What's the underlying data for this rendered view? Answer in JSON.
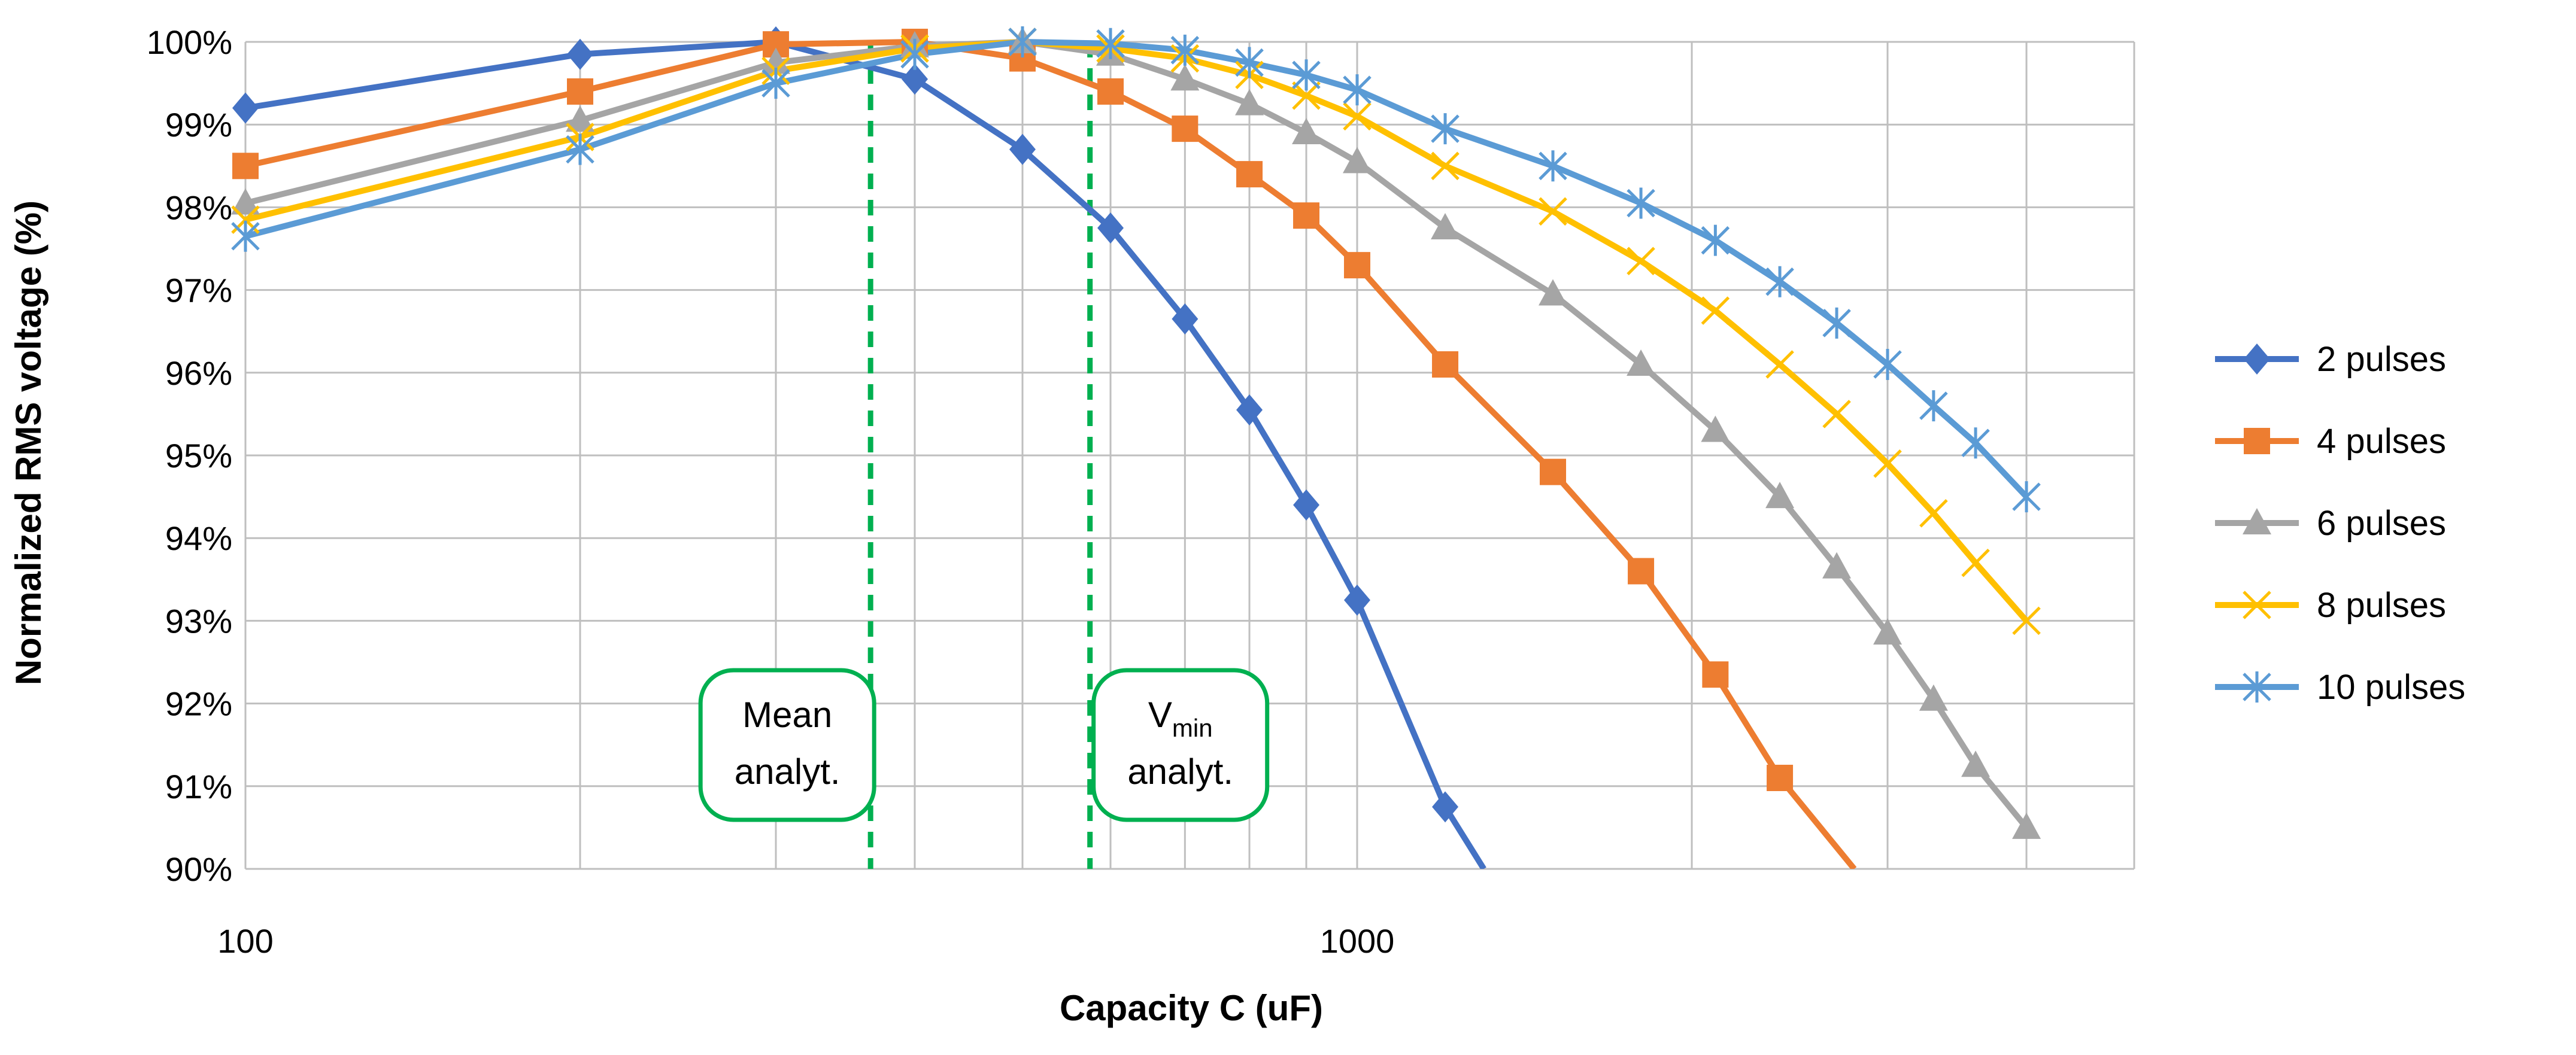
{
  "chart_data": {
    "type": "line",
    "title": "",
    "xlabel": "Capacity C (uF)",
    "ylabel": "Normalized RMS voltage (%)",
    "x_scale": "log",
    "xlim": [
      100,
      5000
    ],
    "ylim": [
      90,
      100
    ],
    "x_tick_labels": [
      "100",
      "1000"
    ],
    "y_tick_labels": [
      "90%",
      "91%",
      "92%",
      "93%",
      "94%",
      "95%",
      "96%",
      "97%",
      "98%",
      "99%",
      "100%"
    ],
    "grid": true,
    "legend_position": "right",
    "colors": {
      "2 pulses": "#4472C4",
      "4 pulses": "#ED7D31",
      "6 pulses": "#A5A5A5",
      "8 pulses": "#FFC000",
      "10 pulses": "#5B9BD5",
      "annotation": "#00B050"
    },
    "series": [
      {
        "name": "2 pulses",
        "marker": "diamond",
        "x": [
          100,
          200,
          300,
          400,
          500,
          600,
          700,
          800,
          900,
          1000,
          1200
        ],
        "values": [
          99.2,
          99.85,
          100.0,
          99.55,
          98.7,
          97.75,
          96.65,
          95.55,
          94.4,
          93.25,
          90.75
        ],
        "extend_to": [
          1300,
          90.0
        ]
      },
      {
        "name": "4 pulses",
        "marker": "square",
        "x": [
          100,
          200,
          300,
          400,
          500,
          600,
          700,
          800,
          900,
          1000,
          1200,
          1500,
          1800,
          2100,
          2400
        ],
        "values": [
          98.5,
          99.4,
          99.97,
          100.0,
          99.8,
          99.4,
          98.95,
          98.4,
          97.9,
          97.3,
          96.1,
          94.8,
          93.6,
          92.35,
          91.1
        ],
        "extend_to": [
          2800,
          90.0
        ]
      },
      {
        "name": "6 pulses",
        "marker": "triangle",
        "x": [
          100,
          200,
          300,
          400,
          500,
          600,
          700,
          800,
          900,
          1000,
          1200,
          1500,
          1800,
          2100,
          2400,
          2700,
          3000,
          3300,
          3600,
          4000
        ],
        "values": [
          98.05,
          99.05,
          99.75,
          99.95,
          100.0,
          99.85,
          99.55,
          99.25,
          98.9,
          98.55,
          97.75,
          96.95,
          96.1,
          95.3,
          94.5,
          93.65,
          92.85,
          92.05,
          91.25,
          90.5
        ]
      },
      {
        "name": "8 pulses",
        "marker": "x",
        "x": [
          100,
          200,
          300,
          400,
          500,
          600,
          700,
          800,
          900,
          1000,
          1200,
          1500,
          1800,
          2100,
          2400,
          2700,
          3000,
          3300,
          3600,
          4000
        ],
        "values": [
          97.85,
          98.85,
          99.65,
          99.92,
          100.0,
          99.92,
          99.8,
          99.6,
          99.35,
          99.1,
          98.5,
          97.95,
          97.35,
          96.75,
          96.1,
          95.5,
          94.9,
          94.3,
          93.7,
          93.0
        ]
      },
      {
        "name": "10 pulses",
        "marker": "asterisk",
        "x": [
          100,
          200,
          300,
          400,
          500,
          600,
          700,
          800,
          900,
          1000,
          1200,
          1500,
          1800,
          2100,
          2400,
          2700,
          3000,
          3300,
          3600,
          4000
        ],
        "values": [
          97.65,
          98.7,
          99.5,
          99.85,
          100.0,
          99.98,
          99.9,
          99.75,
          99.6,
          99.42,
          98.95,
          98.5,
          98.05,
          97.6,
          97.1,
          96.6,
          96.1,
          95.6,
          95.15,
          94.5
        ]
      }
    ],
    "annotations": [
      {
        "name": "mean-analyt",
        "x": 365,
        "label": "Mean",
        "sub": "",
        "label2": "analyt.",
        "box_side": "left"
      },
      {
        "name": "vmin-analyt",
        "x": 575,
        "label": "V",
        "sub": "min",
        "label2": "analyt.",
        "box_side": "right"
      }
    ]
  }
}
